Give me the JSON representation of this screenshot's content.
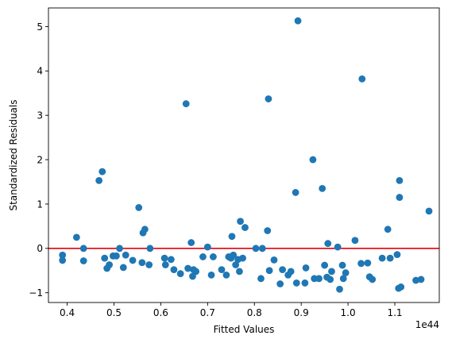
{
  "chart_data": {
    "type": "scatter",
    "xlabel": "Fitted Values",
    "ylabel": "Standardized Residuals",
    "x_offset_text": "1e44",
    "xlim": [
      0.36,
      1.195
    ],
    "ylim": [
      -1.22,
      5.42
    ],
    "x_ticks": [
      0.4,
      0.5,
      0.6,
      0.7,
      0.8,
      0.9,
      1.0,
      1.1
    ],
    "x_tick_labels": [
      "0.4",
      "0.5",
      "0.6",
      "0.7",
      "0.8",
      "0.9",
      "1.0",
      "1.1"
    ],
    "y_ticks": [
      -1,
      0,
      1,
      2,
      3,
      4,
      5
    ],
    "y_tick_labels": [
      "−1",
      "0",
      "1",
      "2",
      "3",
      "4",
      "5"
    ],
    "reference_line": {
      "y": 0,
      "color": "#e8000b"
    },
    "point_color": "#1f77b4",
    "grid": false,
    "points": [
      [
        0.39,
        -0.15
      ],
      [
        0.39,
        -0.27
      ],
      [
        0.42,
        0.25
      ],
      [
        0.435,
        0.0
      ],
      [
        0.435,
        -0.28
      ],
      [
        0.468,
        1.53
      ],
      [
        0.475,
        1.73
      ],
      [
        0.48,
        -0.22
      ],
      [
        0.485,
        -0.45
      ],
      [
        0.49,
        -0.37
      ],
      [
        0.498,
        -0.17
      ],
      [
        0.505,
        -0.17
      ],
      [
        0.512,
        0.0
      ],
      [
        0.52,
        -0.43
      ],
      [
        0.525,
        -0.15
      ],
      [
        0.54,
        -0.27
      ],
      [
        0.553,
        0.92
      ],
      [
        0.56,
        -0.32
      ],
      [
        0.562,
        0.35
      ],
      [
        0.566,
        0.43
      ],
      [
        0.575,
        -0.37
      ],
      [
        0.577,
        0.0
      ],
      [
        0.608,
        -0.22
      ],
      [
        0.61,
        -0.37
      ],
      [
        0.622,
        -0.25
      ],
      [
        0.628,
        -0.48
      ],
      [
        0.642,
        -0.57
      ],
      [
        0.654,
        3.26
      ],
      [
        0.658,
        -0.45
      ],
      [
        0.665,
        0.13
      ],
      [
        0.668,
        -0.63
      ],
      [
        0.67,
        -0.48
      ],
      [
        0.675,
        -0.52
      ],
      [
        0.69,
        -0.19
      ],
      [
        0.7,
        0.03
      ],
      [
        0.708,
        -0.6
      ],
      [
        0.712,
        -0.19
      ],
      [
        0.73,
        -0.48
      ],
      [
        0.74,
        -0.6
      ],
      [
        0.745,
        -0.19
      ],
      [
        0.75,
        -0.22
      ],
      [
        0.752,
        0.27
      ],
      [
        0.755,
        -0.15
      ],
      [
        0.76,
        -0.37
      ],
      [
        0.765,
        -0.25
      ],
      [
        0.768,
        -0.52
      ],
      [
        0.77,
        0.61
      ],
      [
        0.775,
        -0.22
      ],
      [
        0.78,
        0.47
      ],
      [
        0.803,
        0.0
      ],
      [
        0.814,
        -0.68
      ],
      [
        0.817,
        0.0
      ],
      [
        0.828,
        0.4
      ],
      [
        0.83,
        3.37
      ],
      [
        0.832,
        -0.5
      ],
      [
        0.842,
        -0.26
      ],
      [
        0.855,
        -0.8
      ],
      [
        0.86,
        -0.48
      ],
      [
        0.872,
        -0.6
      ],
      [
        0.878,
        -0.52
      ],
      [
        0.888,
        1.26
      ],
      [
        0.89,
        -0.78
      ],
      [
        0.893,
        5.13
      ],
      [
        0.908,
        -0.78
      ],
      [
        0.91,
        -0.44
      ],
      [
        0.925,
        2.0
      ],
      [
        0.928,
        -0.68
      ],
      [
        0.938,
        -0.68
      ],
      [
        0.945,
        1.35
      ],
      [
        0.95,
        -0.38
      ],
      [
        0.955,
        -0.65
      ],
      [
        0.957,
        0.11
      ],
      [
        0.962,
        -0.7
      ],
      [
        0.965,
        -0.52
      ],
      [
        0.978,
        0.03
      ],
      [
        0.982,
        -0.92
      ],
      [
        0.988,
        -0.38
      ],
      [
        0.99,
        -0.68
      ],
      [
        0.995,
        -0.55
      ],
      [
        1.015,
        0.18
      ],
      [
        1.028,
        -0.34
      ],
      [
        1.03,
        3.82
      ],
      [
        1.042,
        -0.33
      ],
      [
        1.046,
        -0.64
      ],
      [
        1.052,
        -0.7
      ],
      [
        1.073,
        -0.22
      ],
      [
        1.085,
        0.43
      ],
      [
        1.09,
        -0.22
      ],
      [
        1.105,
        -0.14
      ],
      [
        1.108,
        -0.9
      ],
      [
        1.11,
        1.53
      ],
      [
        1.11,
        1.15
      ],
      [
        1.113,
        -0.87
      ],
      [
        1.145,
        -0.72
      ],
      [
        1.156,
        -0.7
      ],
      [
        1.173,
        0.84
      ]
    ]
  }
}
